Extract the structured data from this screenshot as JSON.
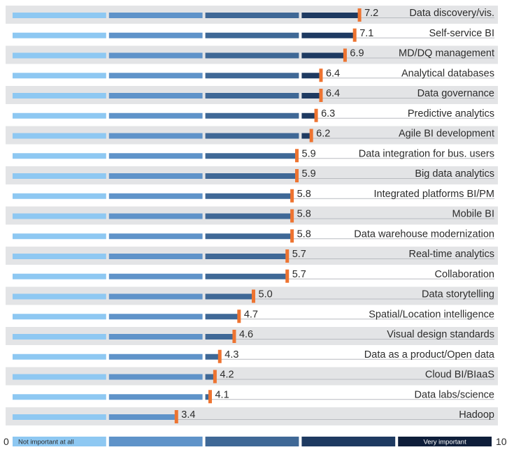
{
  "chart_data": {
    "type": "bar",
    "orientation": "horizontal",
    "xlim": [
      0,
      10
    ],
    "axis_min_label": "0",
    "axis_max_label": "10",
    "scale_labels": {
      "low": "Not important at all",
      "high": "Very important"
    },
    "categories": [
      "Data discovery/vis.",
      "Self-service BI",
      "MD/DQ management",
      "Analytical databases",
      "Data governance",
      "Predictive analytics",
      "Agile BI development",
      "Data integration for bus. users",
      "Big data analytics",
      "Integrated platforms BI/PM",
      "Mobile BI",
      "Data warehouse modernization",
      "Real-time analytics",
      "Collaboration",
      "Data storytelling",
      "Spatial/Location intelligence",
      "Visual design standards",
      "Data as a product/Open data",
      "Cloud BI/BIaaS",
      "Data labs/science",
      "Hadoop"
    ],
    "values": [
      7.2,
      7.1,
      6.9,
      6.4,
      6.4,
      6.3,
      6.2,
      5.9,
      5.9,
      5.8,
      5.8,
      5.8,
      5.7,
      5.7,
      5.0,
      4.7,
      4.6,
      4.3,
      4.2,
      4.1,
      3.4
    ],
    "value_labels": [
      "7.2",
      "7.1",
      "6.9",
      "6.4",
      "6.4",
      "6.3",
      "6.2",
      "5.9",
      "5.9",
      "5.8",
      "5.8",
      "5.8",
      "5.7",
      "5.7",
      "5.0",
      "4.7",
      "4.6",
      "4.3",
      "4.2",
      "4.1",
      "3.4"
    ],
    "segment_colors": [
      "#8ec8f2",
      "#5f93c9",
      "#3f6896",
      "#1e3a61",
      "#0e1e3a"
    ],
    "marker_color": "#ee7431",
    "row_shade_color": "#e3e4e6"
  }
}
